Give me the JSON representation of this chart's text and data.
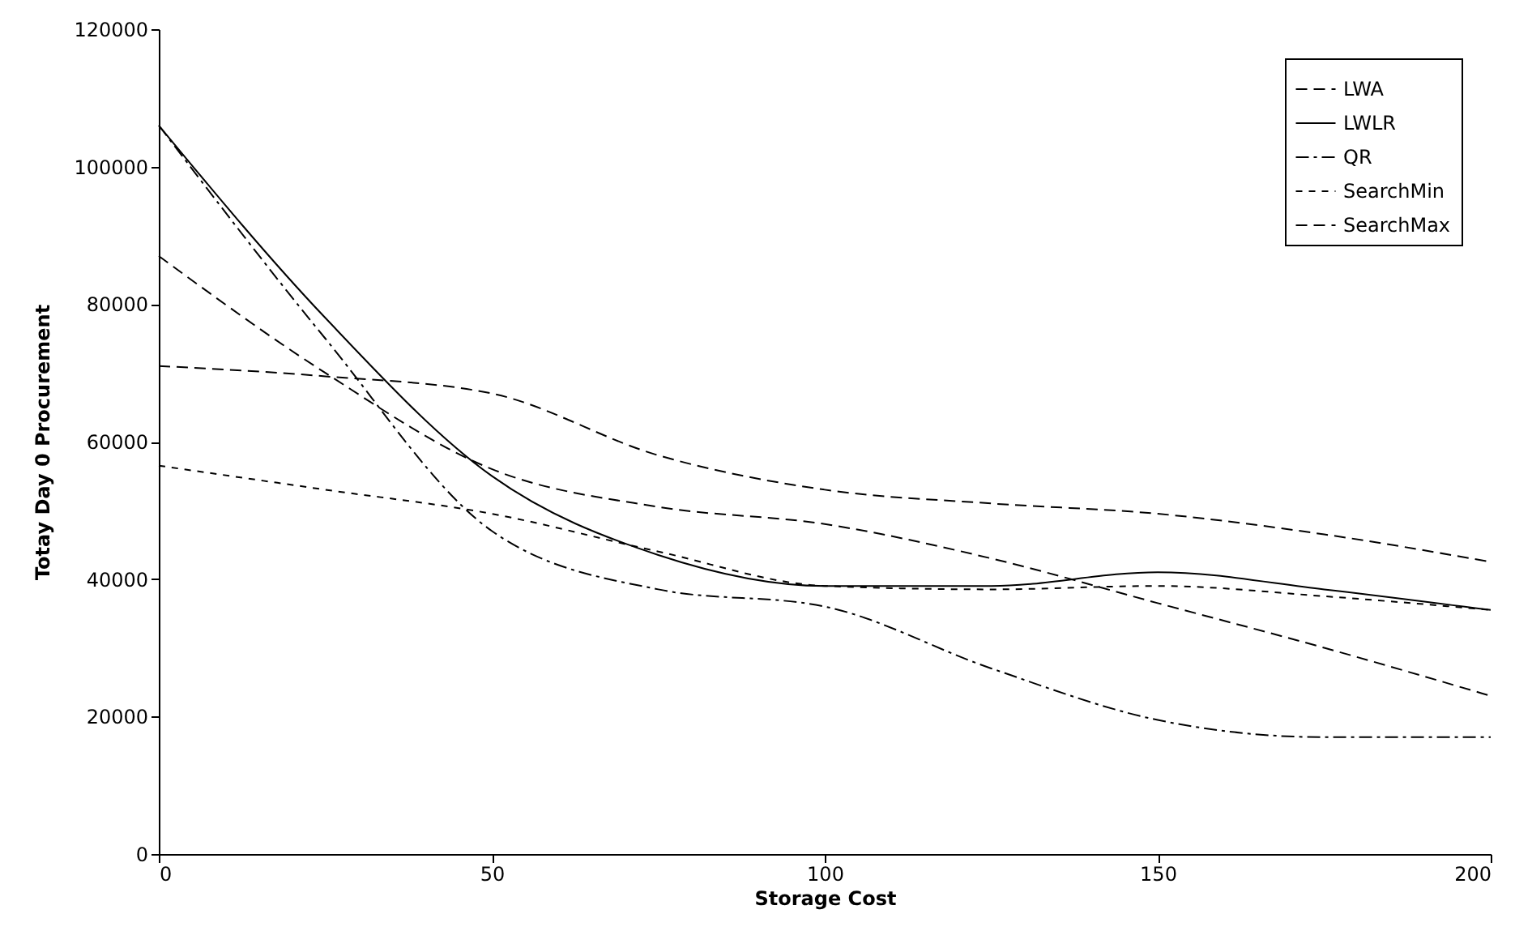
{
  "chart_data": {
    "type": "line",
    "xlabel": "Storage Cost",
    "ylabel": "Totay Day 0 Procurement",
    "x": [
      0,
      25,
      50,
      75,
      100,
      125,
      150,
      175,
      200
    ],
    "xlim": [
      0,
      200
    ],
    "xticks": [
      0,
      50,
      100,
      150,
      200
    ],
    "ylim": [
      0,
      120000
    ],
    "yticks": [
      0,
      20000,
      40000,
      60000,
      80000,
      100000,
      120000
    ],
    "grid": false,
    "legend": "top right",
    "series": [
      {
        "name": "LWA",
        "color": "#000000",
        "line_style": "dashed",
        "values": [
          87000,
          70000,
          56000,
          50500,
          48000,
          43000,
          36500,
          30000,
          23000
        ]
      },
      {
        "name": "LWLR",
        "color": "#000000",
        "line_style": "solid",
        "values": [
          106000,
          78000,
          55000,
          43500,
          39000,
          39000,
          41000,
          38500,
          35500
        ]
      },
      {
        "name": "QR",
        "color": "#000000",
        "line_style": "dashdot",
        "values": [
          106000,
          75000,
          47000,
          38500,
          36000,
          27000,
          19500,
          17000,
          17000
        ]
      },
      {
        "name": "SearchMin",
        "color": "#000000",
        "line_style": "dotted",
        "values": [
          56500,
          53000,
          49500,
          44000,
          39000,
          38500,
          39000,
          37500,
          35500
        ]
      },
      {
        "name": "SearchMax",
        "color": "#000000",
        "line_style": "dashed",
        "values": [
          71000,
          69500,
          67000,
          58000,
          53000,
          51000,
          49500,
          46500,
          42500
        ]
      }
    ]
  }
}
